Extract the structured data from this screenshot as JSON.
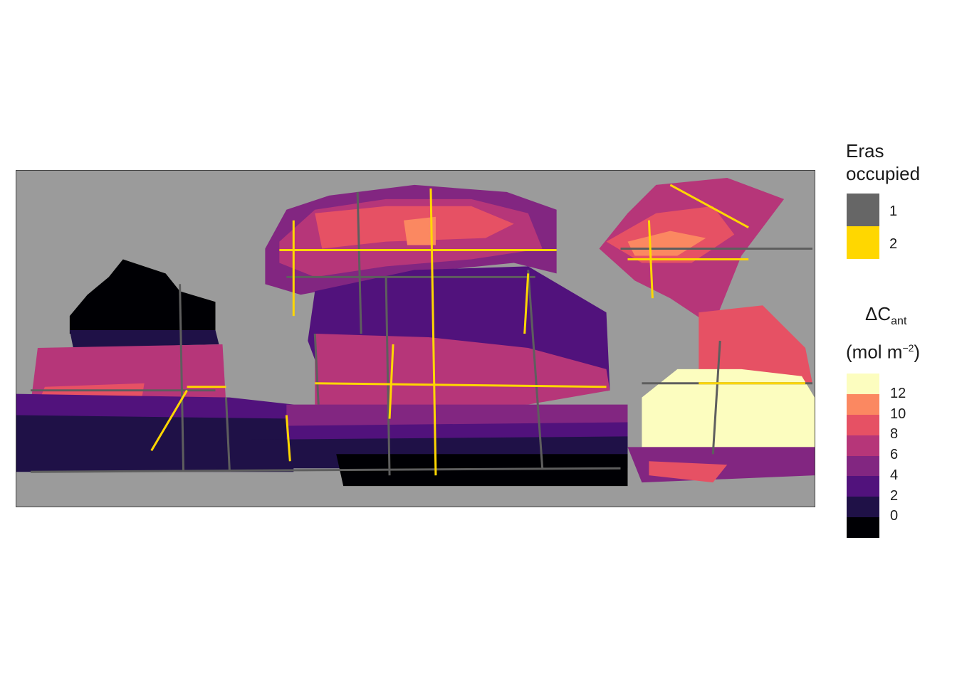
{
  "map": {
    "colors": {
      "land": "#9b9b9b",
      "ice": "#ffffff",
      "track_era1": "#5e5e5e",
      "track_era2": "#ffd700"
    }
  },
  "legend_eras": {
    "title_line1": "Eras",
    "title_line2": "occupied",
    "items": [
      {
        "label": "1",
        "color": "#666666"
      },
      {
        "label": "2",
        "color": "#ffd700"
      }
    ]
  },
  "legend_dcant": {
    "title_symbol": "ΔC",
    "title_sub": "ant",
    "unit_open": "(mol m",
    "unit_sup": "−2",
    "unit_close": ")",
    "bins": [
      {
        "range": "< 0",
        "color": "#000004"
      },
      {
        "range": "0–2",
        "color": "#1f1147"
      },
      {
        "range": "2–4",
        "color": "#51127c"
      },
      {
        "range": "4–6",
        "color": "#822681"
      },
      {
        "range": "6–8",
        "color": "#b63679"
      },
      {
        "range": "8–10",
        "color": "#e65164"
      },
      {
        "range": "10–12",
        "color": "#fb8861"
      },
      {
        "range": "> 12",
        "color": "#fcfdbf"
      }
    ],
    "tick_labels": [
      "0",
      "2",
      "4",
      "6",
      "8",
      "10",
      "12"
    ]
  }
}
